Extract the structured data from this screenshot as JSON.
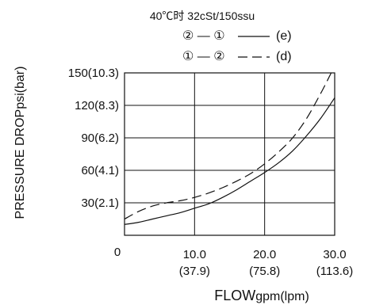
{
  "chart_data": {
    "type": "line",
    "title": "40℃时 32cSt/150ssu",
    "xlabel_main": "FLOW",
    "xlabel_unit": "gpm(lpm)",
    "ylabel_main": "PRESSURE DROP",
    "ylabel_unit": "psi(bar)",
    "xlim": [
      0,
      30
    ],
    "ylim": [
      0,
      150
    ],
    "x_origin_label": "0",
    "x_ticks": [
      {
        "value": 10,
        "label": "10.0",
        "sublabel": "(37.9)"
      },
      {
        "value": 20,
        "label": "20.0",
        "sublabel": "(75.8)"
      },
      {
        "value": 30,
        "label": "30.0",
        "sublabel": "(113.6)"
      }
    ],
    "y_ticks": [
      {
        "value": 30,
        "label": "30(2.1)"
      },
      {
        "value": 60,
        "label": "60(4.1)"
      },
      {
        "value": 90,
        "label": "90(6.2)"
      },
      {
        "value": 120,
        "label": "120(8.3)"
      },
      {
        "value": 150,
        "label": "150(10.3)"
      }
    ],
    "grid": true,
    "legend_position": "top",
    "series": [
      {
        "name": "(e)",
        "legend_text": "② — ①",
        "style": "solid",
        "x": [
          0,
          2,
          4,
          6,
          8,
          10,
          12,
          14,
          16,
          18,
          20,
          22,
          24,
          26,
          28,
          30
        ],
        "y": [
          10,
          12,
          15,
          18,
          21,
          25,
          29,
          35,
          42,
          50,
          58,
          67,
          78,
          92,
          108,
          127
        ]
      },
      {
        "name": "(d)",
        "legend_text": "① — ②",
        "style": "dashed",
        "x": [
          0,
          2,
          4,
          6,
          8,
          10,
          12,
          14,
          16,
          18,
          20,
          22,
          24,
          26,
          28,
          29.5
        ],
        "y": [
          15,
          22,
          27,
          30,
          32,
          35,
          39,
          44,
          50,
          57,
          66,
          77,
          90,
          108,
          131,
          150
        ]
      }
    ]
  }
}
